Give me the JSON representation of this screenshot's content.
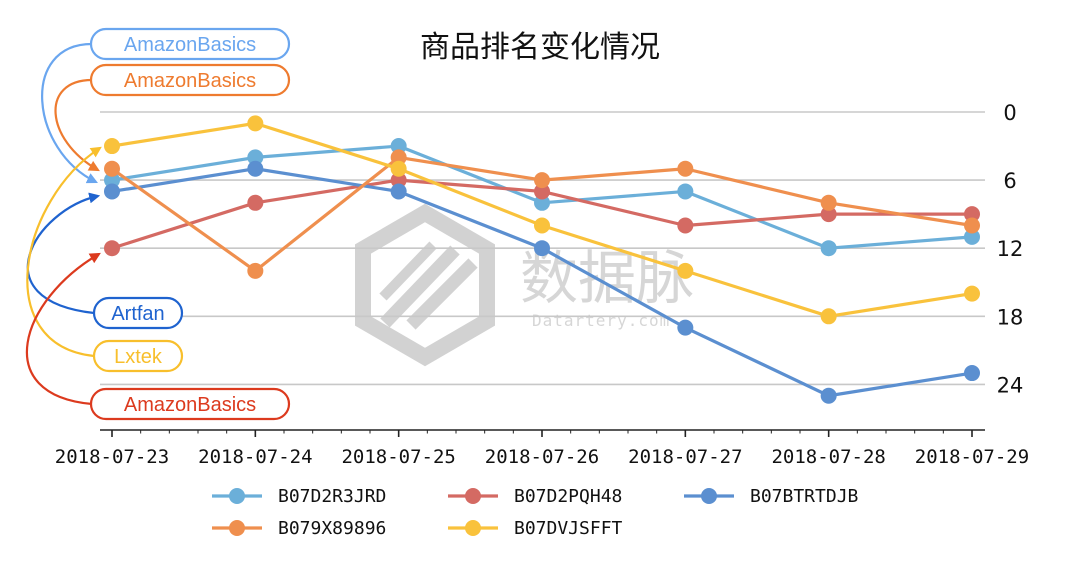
{
  "chart_data": {
    "type": "line",
    "title": "商品排名变化情况",
    "categories": [
      "2018-07-23",
      "2018-07-24",
      "2018-07-25",
      "2018-07-26",
      "2018-07-27",
      "2018-07-28",
      "2018-07-29"
    ],
    "ylim": [
      0,
      28
    ],
    "y_inverted": true,
    "yticks": [
      0,
      6,
      12,
      18,
      24
    ],
    "y_axis_side": "right",
    "grid": true,
    "legend_position": "bottom",
    "series": [
      {
        "name": "B07D2R3JRD",
        "color": "#6bafd9",
        "values": [
          6,
          4,
          3,
          8,
          7,
          12,
          11
        ]
      },
      {
        "name": "B07D2PQH48",
        "color": "#d46a63",
        "values": [
          12,
          8,
          6,
          7,
          10,
          9,
          9
        ]
      },
      {
        "name": "B07BTRTDJB",
        "color": "#5b8fd0",
        "values": [
          7,
          5,
          7,
          12,
          19,
          25,
          23
        ]
      },
      {
        "name": "B079X89896",
        "color": "#ef8f4e",
        "values": [
          5,
          14,
          4,
          6,
          5,
          8,
          10
        ]
      },
      {
        "name": "B07DVJSFFT",
        "color": "#f9c23c",
        "values": [
          3,
          1,
          5,
          10,
          14,
          18,
          16
        ]
      }
    ]
  },
  "callouts": [
    {
      "label": "AmazonBasics",
      "color": "#6aa6ef",
      "series": "B07D2R3JRD"
    },
    {
      "label": "AmazonBasics",
      "color": "#ee7b2f",
      "series": "B079X89896"
    },
    {
      "label": "Artfan",
      "color": "#1f63cf",
      "series": "B07BTRTDJB"
    },
    {
      "label": "Lxtek",
      "color": "#f8bf2c",
      "series": "B07DVJSFFT"
    },
    {
      "label": "AmazonBasics",
      "color": "#dc3a1e",
      "series": "B07D2PQH48"
    }
  ],
  "watermark": {
    "cn": "数据脉",
    "en": "Datartery.com"
  }
}
